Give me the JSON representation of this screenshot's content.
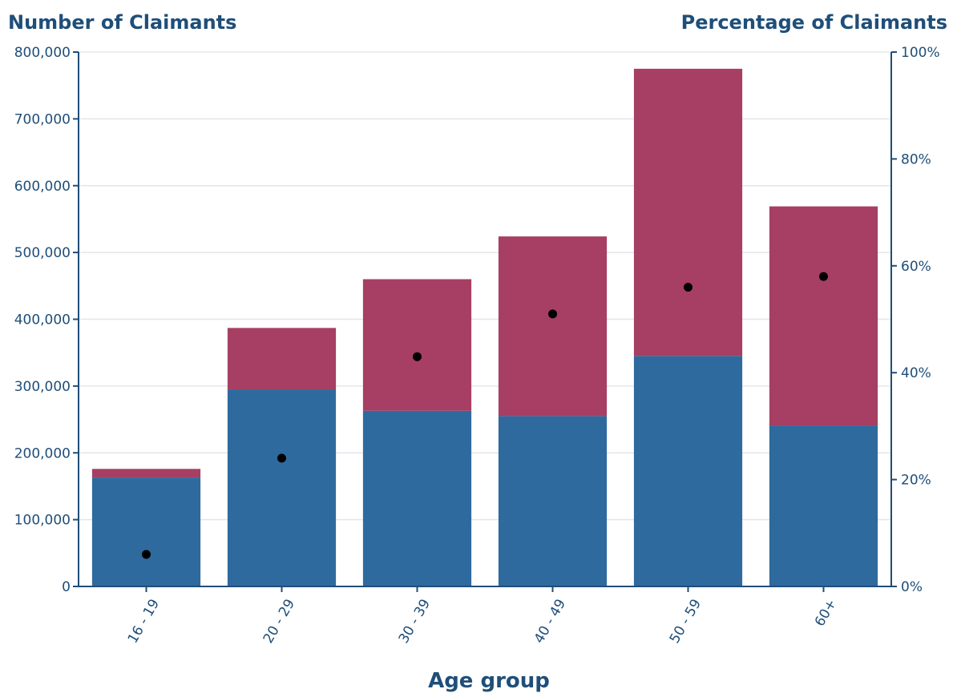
{
  "chart_data": {
    "type": "bar",
    "stacked": true,
    "left_axis_title": "Number of Claimants",
    "right_axis_title": "Percentage of Claimants",
    "xlabel": "Age group",
    "categories": [
      "16 - 19",
      "20 - 29",
      "30 - 39",
      "40 - 49",
      "50 - 59",
      "60+"
    ],
    "ylim": [
      0,
      800000
    ],
    "y_ticks": [
      0,
      100000,
      200000,
      300000,
      400000,
      500000,
      600000,
      700000,
      800000
    ],
    "y_tick_labels": [
      "0",
      "100,000",
      "200,000",
      "300,000",
      "400,000",
      "500,000",
      "600,000",
      "700,000",
      "800,000"
    ],
    "y2lim": [
      0,
      100
    ],
    "y2_ticks": [
      0,
      20,
      40,
      60,
      80,
      100
    ],
    "y2_tick_labels": [
      "0%",
      "20%",
      "40%",
      "60%",
      "80%",
      "100%"
    ],
    "series": [
      {
        "axis": "left",
        "kind": "bar",
        "color": "#2e6a9e",
        "values": [
          163000,
          295000,
          263000,
          255000,
          345000,
          241000
        ]
      },
      {
        "axis": "left",
        "kind": "bar",
        "color": "#a63f63",
        "values": [
          13000,
          92000,
          197000,
          269000,
          430000,
          328000
        ]
      },
      {
        "axis": "right",
        "kind": "point",
        "color": "#000000",
        "values": [
          6,
          24,
          43,
          51,
          56,
          58
        ]
      }
    ],
    "grid": true
  }
}
